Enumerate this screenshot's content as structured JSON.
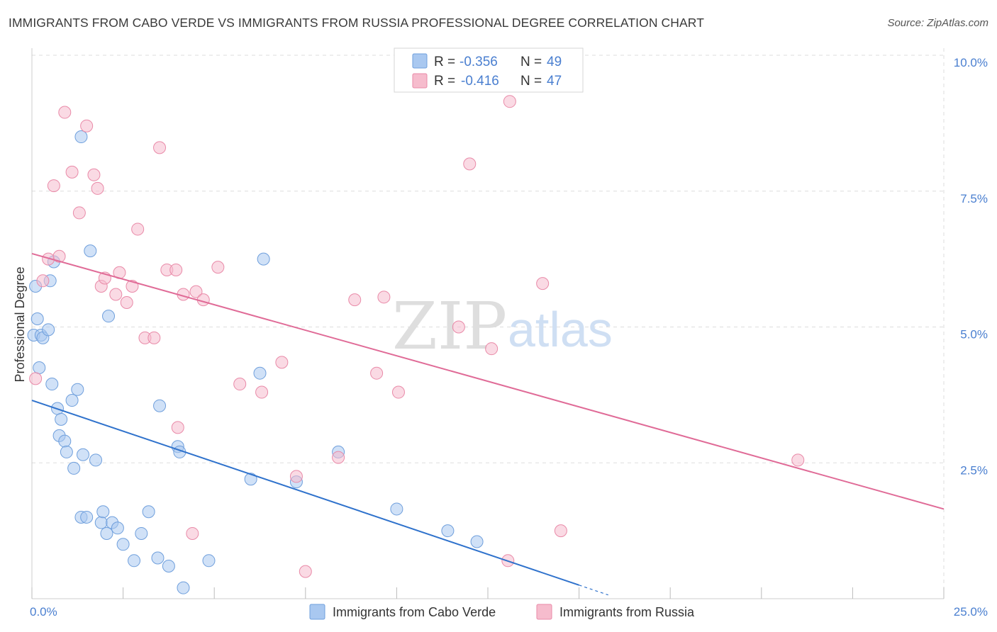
{
  "title": "IMMIGRANTS FROM CABO VERDE VS IMMIGRANTS FROM RUSSIA PROFESSIONAL DEGREE CORRELATION CHART",
  "source": "Source: ZipAtlas.com",
  "watermark": {
    "zip": "ZIP",
    "atlas": "atlas"
  },
  "colors": {
    "blue_fill": "#a9c8f0",
    "blue_stroke": "#6f9fdc",
    "blue_line": "#2f72cc",
    "pink_fill": "#f6bccd",
    "pink_stroke": "#e98aa8",
    "pink_line": "#e06b97",
    "grid": "#dddddd",
    "tick_label": "#4a7fd0"
  },
  "legend": {
    "rows": [
      {
        "r_label": "R = ",
        "r_value": "-0.356",
        "n_label": "N = ",
        "n_value": "49"
      },
      {
        "r_label": "R = ",
        "r_value": "-0.416",
        "n_label": "N = ",
        "n_value": "47"
      }
    ]
  },
  "chart_data": {
    "type": "scatter",
    "title": "IMMIGRANTS FROM CABO VERDE VS IMMIGRANTS FROM RUSSIA PROFESSIONAL DEGREE CORRELATION CHART",
    "xlabel": "",
    "ylabel": "Professional Degree",
    "xlim": [
      0,
      25
    ],
    "ylim": [
      0,
      10
    ],
    "x_tick_labels": [
      "0.0%",
      "25.0%"
    ],
    "y_ticks": [
      2.5,
      5.0,
      7.5,
      10.0
    ],
    "y_tick_labels": [
      "2.5%",
      "5.0%",
      "7.5%",
      "10.0%"
    ],
    "grid": true,
    "legend_position": "bottom",
    "series": [
      {
        "name": "Immigrants from Cabo Verde",
        "color": "blue",
        "trend": {
          "x0": 0,
          "y0": 3.65,
          "x1": 15.0,
          "y1": 0.25,
          "dash_to_x": 15.8
        },
        "points": [
          [
            0.05,
            4.85
          ],
          [
            0.1,
            5.75
          ],
          [
            0.15,
            5.15
          ],
          [
            0.2,
            4.25
          ],
          [
            0.25,
            4.85
          ],
          [
            0.3,
            4.8
          ],
          [
            0.45,
            4.95
          ],
          [
            0.5,
            5.85
          ],
          [
            0.55,
            3.95
          ],
          [
            0.6,
            6.2
          ],
          [
            0.7,
            3.5
          ],
          [
            0.75,
            3.0
          ],
          [
            0.8,
            3.3
          ],
          [
            0.9,
            2.9
          ],
          [
            0.95,
            2.7
          ],
          [
            1.1,
            3.65
          ],
          [
            1.15,
            2.4
          ],
          [
            1.25,
            3.85
          ],
          [
            1.35,
            1.5
          ],
          [
            1.4,
            2.65
          ],
          [
            1.5,
            1.5
          ],
          [
            1.6,
            6.4
          ],
          [
            1.75,
            2.55
          ],
          [
            1.9,
            1.4
          ],
          [
            1.95,
            1.6
          ],
          [
            2.05,
            1.2
          ],
          [
            2.1,
            5.2
          ],
          [
            2.2,
            1.4
          ],
          [
            2.35,
            1.3
          ],
          [
            2.5,
            1.0
          ],
          [
            2.8,
            0.7
          ],
          [
            3.0,
            1.2
          ],
          [
            3.2,
            1.6
          ],
          [
            3.45,
            0.75
          ],
          [
            3.5,
            3.55
          ],
          [
            3.75,
            0.6
          ],
          [
            4.0,
            2.8
          ],
          [
            4.05,
            2.7
          ],
          [
            4.15,
            0.2
          ],
          [
            4.85,
            0.7
          ],
          [
            6.0,
            2.2
          ],
          [
            6.25,
            4.15
          ],
          [
            6.35,
            6.25
          ],
          [
            7.25,
            2.15
          ],
          [
            8.4,
            2.7
          ],
          [
            10.0,
            1.65
          ],
          [
            11.4,
            1.25
          ],
          [
            12.2,
            1.05
          ],
          [
            1.35,
            8.5
          ]
        ]
      },
      {
        "name": "Immigrants from Russia",
        "color": "pink",
        "trend": {
          "x0": 0,
          "y0": 6.35,
          "x1": 25.0,
          "y1": 1.65
        },
        "points": [
          [
            0.1,
            4.05
          ],
          [
            0.3,
            5.85
          ],
          [
            0.45,
            6.25
          ],
          [
            0.6,
            7.6
          ],
          [
            0.75,
            6.3
          ],
          [
            0.9,
            8.95
          ],
          [
            1.1,
            7.85
          ],
          [
            1.3,
            7.1
          ],
          [
            1.5,
            8.7
          ],
          [
            1.7,
            7.8
          ],
          [
            1.8,
            7.55
          ],
          [
            1.9,
            5.75
          ],
          [
            2.0,
            5.9
          ],
          [
            2.3,
            5.6
          ],
          [
            2.4,
            6.0
          ],
          [
            2.6,
            5.45
          ],
          [
            2.75,
            5.75
          ],
          [
            2.9,
            6.8
          ],
          [
            3.1,
            4.8
          ],
          [
            3.35,
            4.8
          ],
          [
            3.5,
            8.3
          ],
          [
            3.7,
            6.05
          ],
          [
            3.95,
            6.05
          ],
          [
            4.15,
            5.6
          ],
          [
            4.5,
            5.65
          ],
          [
            4.7,
            5.5
          ],
          [
            4.0,
            3.15
          ],
          [
            5.1,
            6.1
          ],
          [
            5.7,
            3.95
          ],
          [
            6.3,
            3.8
          ],
          [
            6.85,
            4.35
          ],
          [
            7.25,
            2.25
          ],
          [
            7.5,
            0.5
          ],
          [
            8.4,
            2.6
          ],
          [
            8.85,
            5.5
          ],
          [
            9.45,
            4.15
          ],
          [
            9.65,
            5.55
          ],
          [
            10.05,
            3.8
          ],
          [
            11.7,
            5.0
          ],
          [
            12.0,
            8.0
          ],
          [
            12.6,
            4.6
          ],
          [
            13.05,
            0.7
          ],
          [
            13.1,
            9.15
          ],
          [
            14.0,
            5.8
          ],
          [
            14.5,
            1.25
          ],
          [
            21.0,
            2.55
          ],
          [
            4.4,
            1.2
          ]
        ]
      }
    ]
  }
}
